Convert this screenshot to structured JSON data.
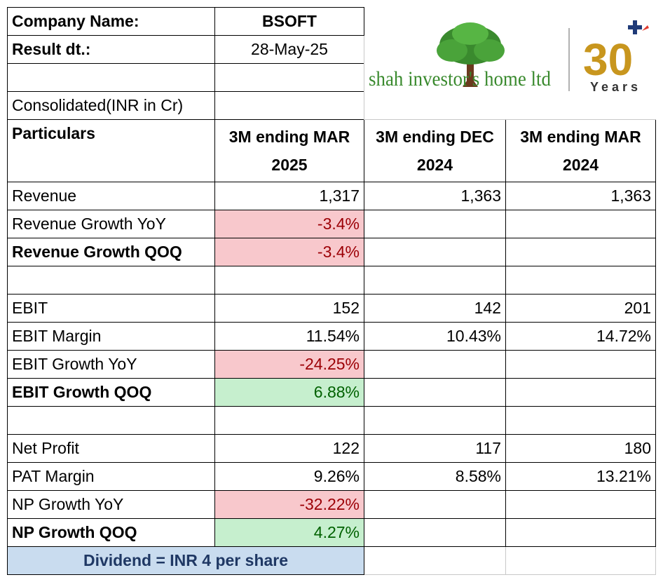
{
  "company": {
    "label": "Company Name:",
    "value": "BSOFT"
  },
  "result": {
    "label": "Result dt.:",
    "value": "28-May-25"
  },
  "basis": "Consolidated(INR in Cr)",
  "logo": {
    "brand_text": "shah investor's home ltd",
    "badge_number": "30",
    "badge_text": "Years",
    "brand_color": "#3a8a2e",
    "badge_color": "#c8961e"
  },
  "header": {
    "particulars": "Particulars",
    "col1": "3M ending MAR 2025",
    "col2": "3M ending   DEC 2024",
    "col3": "3M ending MAR 2024"
  },
  "rows": [
    {
      "label": "Revenue",
      "c1": "1,317",
      "c2": "1,363",
      "c3": "1,363"
    },
    {
      "label": "Revenue Growth YoY",
      "c1": "-3.4%",
      "c2": "",
      "c3": ""
    },
    {
      "label": "Revenue Growth QOQ",
      "c1": "-3.4%",
      "c2": "",
      "c3": ""
    },
    {
      "label": "",
      "c1": "",
      "c2": "",
      "c3": ""
    },
    {
      "label": "EBIT",
      "c1": "152",
      "c2": "142",
      "c3": "201"
    },
    {
      "label": "EBIT Margin",
      "c1": "11.54%",
      "c2": "10.43%",
      "c3": "14.72%"
    },
    {
      "label": "EBIT Growth YoY",
      "c1": "-24.25%",
      "c2": "",
      "c3": ""
    },
    {
      "label": "EBIT Growth QOQ",
      "c1": "6.88%",
      "c2": "",
      "c3": ""
    },
    {
      "label": "",
      "c1": "",
      "c2": "",
      "c3": ""
    },
    {
      "label": "Net Profit",
      "c1": "122",
      "c2": "117",
      "c3": "180"
    },
    {
      "label": "PAT Margin",
      "c1": "9.26%",
      "c2": "8.58%",
      "c3": "13.21%"
    },
    {
      "label": "NP Growth YoY",
      "c1": "-32.22%",
      "c2": "",
      "c3": ""
    },
    {
      "label": "NP Growth QOQ",
      "c1": "4.27%",
      "c2": "",
      "c3": ""
    }
  ],
  "footer": "Dividend = INR 4 per share",
  "colors": {
    "negative_fill": "#f8c8cc",
    "negative_text": "#9c0006",
    "positive_fill": "#c6efce",
    "positive_text": "#006100",
    "footer_fill": "#c9dcef",
    "footer_text": "#1f3864"
  }
}
